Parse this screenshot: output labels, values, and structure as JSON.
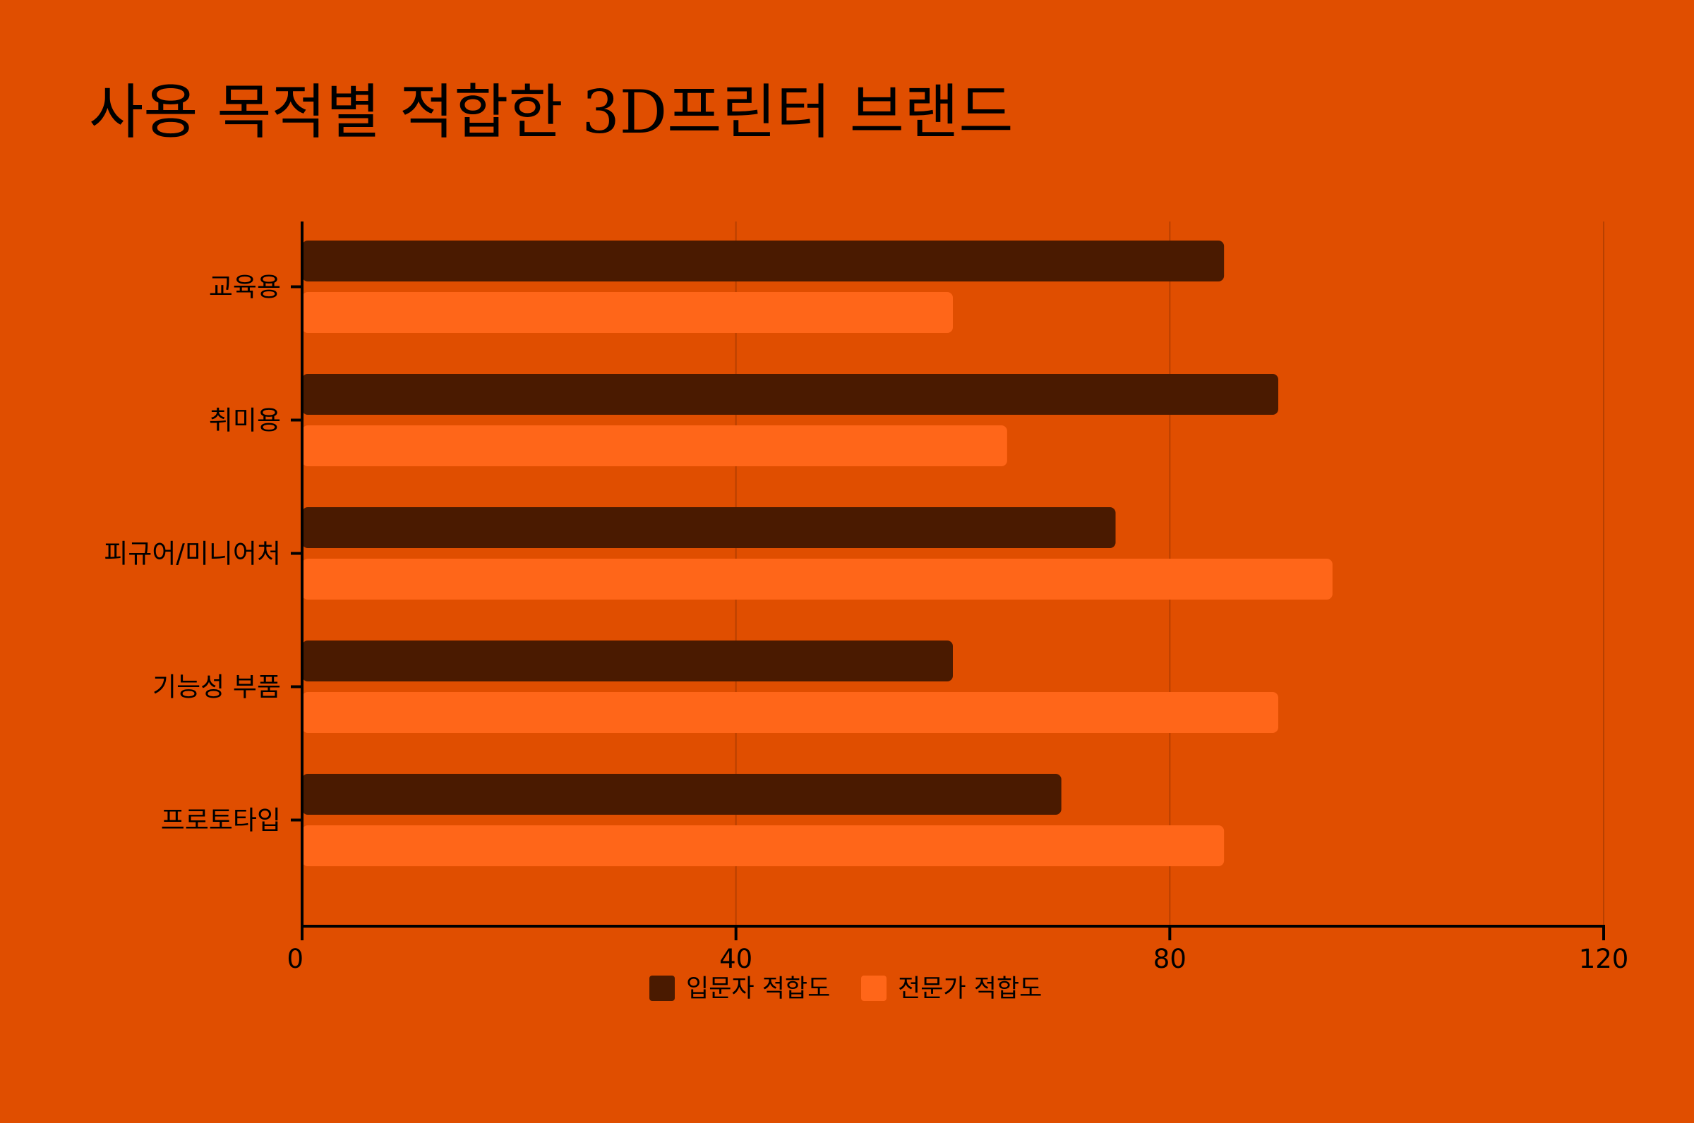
{
  "chart_data": {
    "type": "bar",
    "orientation": "horizontal",
    "title": "사용 목적별 적합한 3D프린터 브랜드",
    "categories": [
      "교육용",
      "취미용",
      "피규어/미니어처",
      "기능성 부품",
      "프로토타입"
    ],
    "series": [
      {
        "name": "입문자 적합도",
        "values": [
          85,
          90,
          75,
          60,
          70
        ],
        "color": "#4A1A00"
      },
      {
        "name": "전문가 적합도",
        "values": [
          60,
          65,
          95,
          90,
          85
        ],
        "color": "#FF6619"
      }
    ],
    "xlim": [
      0,
      120
    ],
    "xticks": [
      0,
      40,
      80,
      120
    ],
    "grid": true,
    "legend": "bottom-center",
    "background": "#E04E00",
    "grid_color": "#B84000"
  }
}
